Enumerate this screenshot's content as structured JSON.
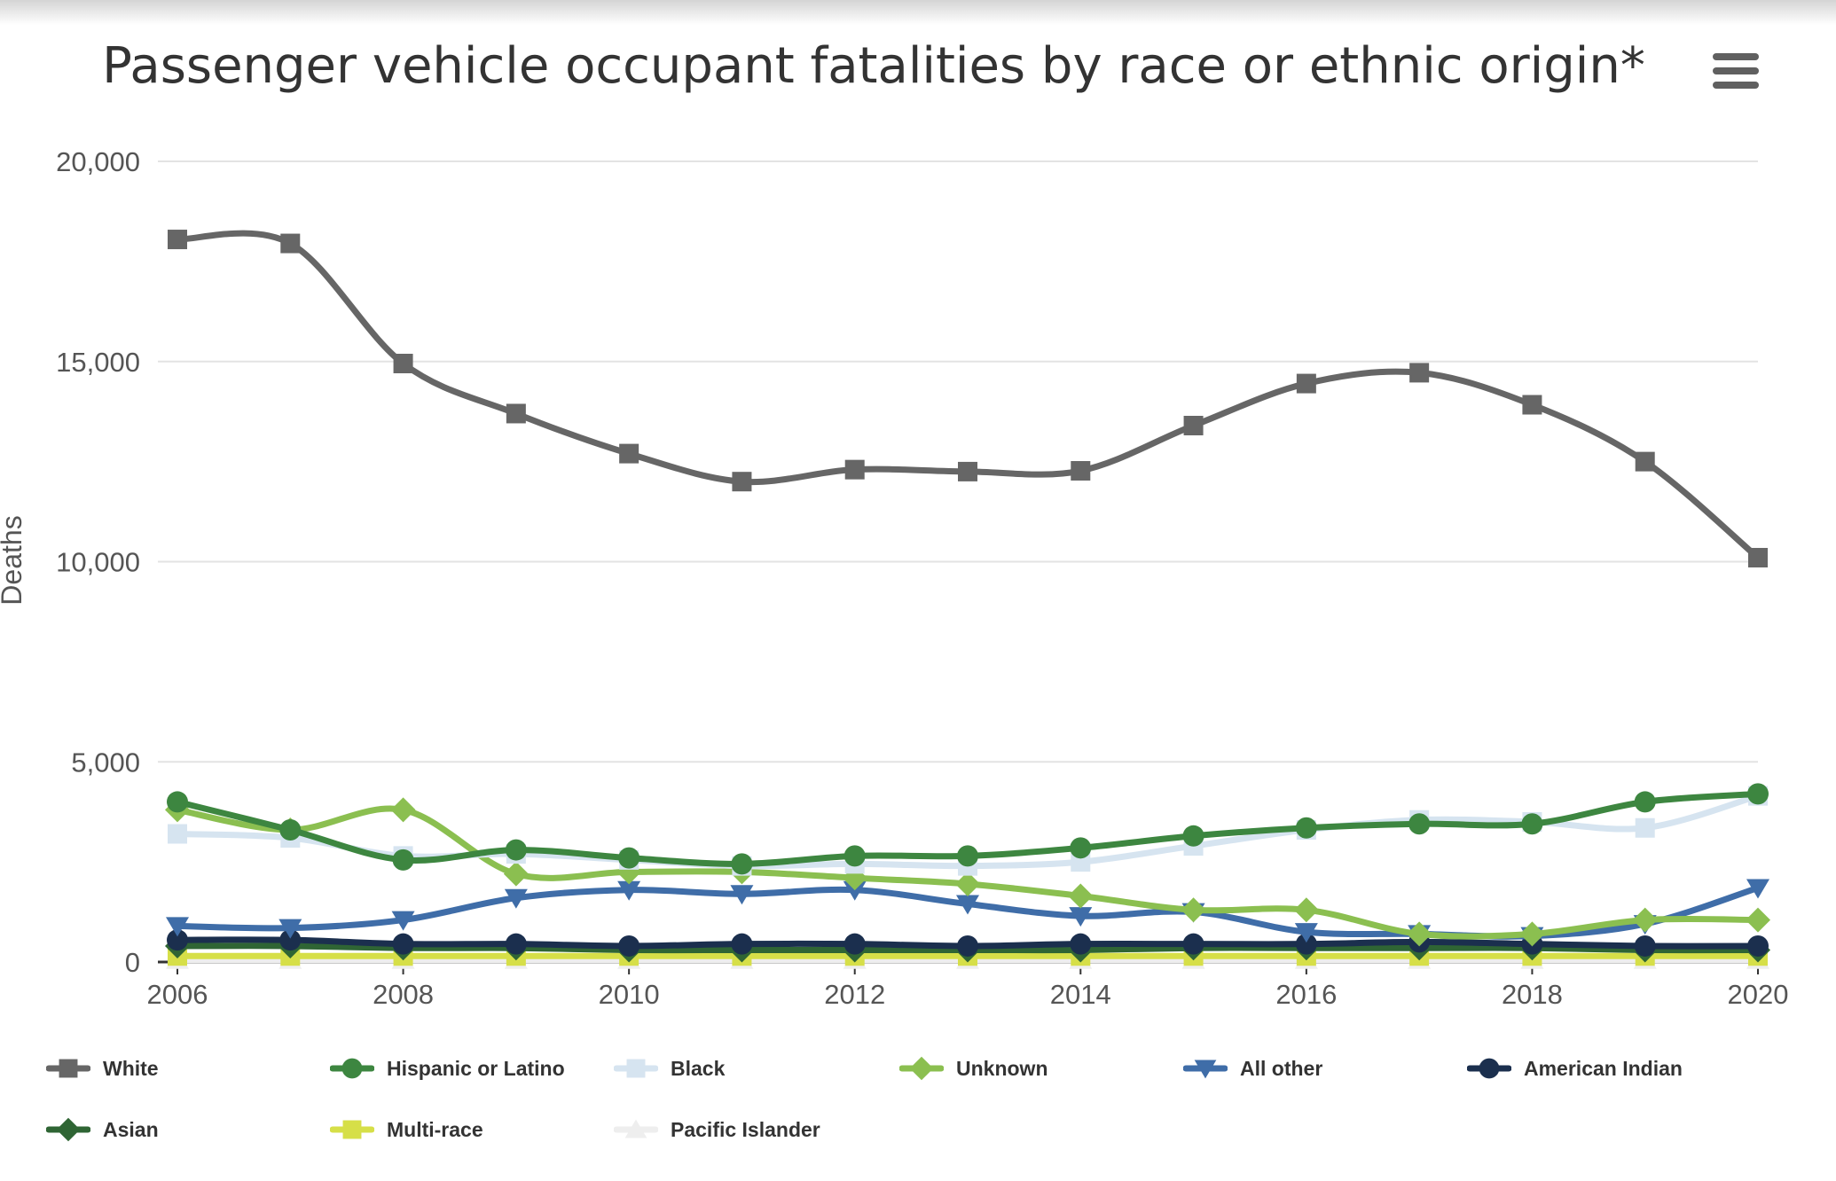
{
  "title": "Passenger vehicle occupant fatalities by race or ethnic origin*",
  "menu_icon": "hamburger-menu-icon",
  "chart_data": {
    "type": "line",
    "title": "Passenger vehicle occupant fatalities by race or ethnic origin*",
    "xlabel": "",
    "ylabel": "Deaths",
    "x": [
      2006,
      2007,
      2008,
      2009,
      2010,
      2011,
      2012,
      2013,
      2014,
      2015,
      2016,
      2017,
      2018,
      2019,
      2020
    ],
    "x_ticks": [
      "2006",
      "2008",
      "2010",
      "2012",
      "2014",
      "2016",
      "2018",
      "2020"
    ],
    "y_ticks": [
      "0",
      "5,000",
      "10,000",
      "15,000",
      "20,000"
    ],
    "xlim": [
      2006,
      2020
    ],
    "ylim": [
      0,
      20000
    ],
    "grid": true,
    "legend_position": "bottom",
    "series": [
      {
        "name": "White",
        "color": "#666666",
        "marker": "square",
        "values": [
          18050,
          17950,
          14950,
          13700,
          12700,
          12000,
          12300,
          12250,
          12270,
          13400,
          14450,
          14720,
          13920,
          12500,
          10100
        ]
      },
      {
        "name": "Hispanic or Latino",
        "color": "#3d8640",
        "marker": "circle",
        "values": [
          4000,
          3300,
          2550,
          2800,
          2600,
          2450,
          2650,
          2650,
          2850,
          3150,
          3350,
          3450,
          3450,
          4000,
          4200
        ]
      },
      {
        "name": "Black",
        "color": "#d6e4f0",
        "marker": "square",
        "values": [
          3200,
          3100,
          2650,
          2700,
          2550,
          2400,
          2450,
          2400,
          2500,
          2900,
          3300,
          3550,
          3500,
          3350,
          4150
        ]
      },
      {
        "name": "Unknown",
        "color": "#8bbf50",
        "marker": "diamond",
        "values": [
          3800,
          3300,
          3800,
          2200,
          2250,
          2250,
          2100,
          1950,
          1650,
          1300,
          1300,
          700,
          700,
          1050,
          1050
        ]
      },
      {
        "name": "All other",
        "color": "#3f6da8",
        "marker": "triangle-down",
        "values": [
          900,
          850,
          1050,
          1600,
          1800,
          1700,
          1800,
          1450,
          1150,
          1250,
          750,
          700,
          650,
          950,
          1850
        ]
      },
      {
        "name": "American Indian",
        "color": "#1b2f4e",
        "marker": "circle",
        "values": [
          550,
          550,
          450,
          450,
          400,
          450,
          450,
          400,
          450,
          450,
          450,
          500,
          450,
          400,
          400
        ]
      },
      {
        "name": "Asian",
        "color": "#2f6534",
        "marker": "diamond",
        "values": [
          400,
          400,
          350,
          350,
          300,
          300,
          300,
          300,
          300,
          350,
          350,
          350,
          350,
          300,
          300
        ]
      },
      {
        "name": "Multi-race",
        "color": "#d6df48",
        "marker": "square",
        "values": [
          150,
          150,
          150,
          150,
          150,
          150,
          150,
          150,
          150,
          150,
          150,
          150,
          150,
          150,
          150
        ]
      },
      {
        "name": "Pacific Islander",
        "color": "#eeeeee",
        "marker": "triangle-up",
        "values": [
          50,
          50,
          50,
          50,
          50,
          50,
          50,
          50,
          50,
          50,
          50,
          50,
          50,
          50,
          50
        ]
      }
    ]
  }
}
